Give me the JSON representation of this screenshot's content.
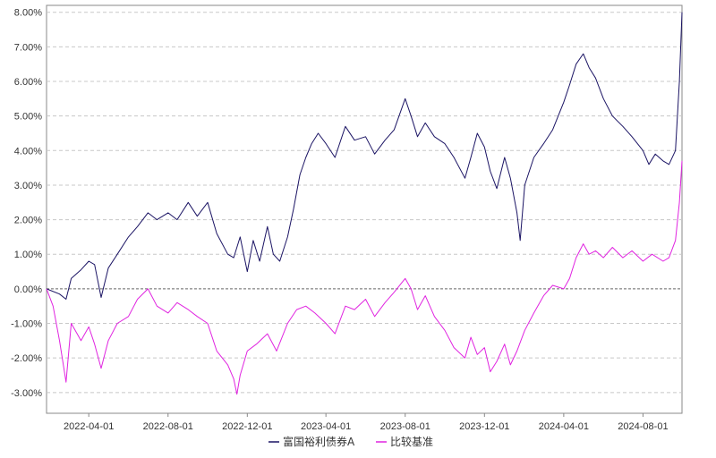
{
  "chart_data": {
    "type": "line",
    "title": "",
    "xlabel": "",
    "ylabel": "",
    "x_range": [
      "2022-01-26",
      "2024-09-30"
    ],
    "ylim": [
      -3.6,
      8.2
    ],
    "y_ticks": [
      -3.0,
      -2.0,
      -1.0,
      0.0,
      1.0,
      2.0,
      3.0,
      4.0,
      5.0,
      6.0,
      7.0,
      8.0
    ],
    "y_tick_labels": [
      "-3.00%",
      "-2.00%",
      "-1.00%",
      "0.00%",
      "1.00%",
      "2.00%",
      "3.00%",
      "4.00%",
      "5.00%",
      "6.00%",
      "7.00%",
      "8.00%"
    ],
    "x_ticks": [
      "2022-04-01",
      "2022-08-01",
      "2022-12-01",
      "2023-04-01",
      "2023-08-01",
      "2023-12-01",
      "2024-04-01",
      "2024-08-01"
    ],
    "grid": "horizontal-dashed",
    "legend_position": "bottom-center",
    "series": [
      {
        "name": "富国裕利债券A",
        "color": "#1b1464",
        "points": [
          [
            "2022-01-26",
            0.0
          ],
          [
            "2022-02-15",
            -0.15
          ],
          [
            "2022-02-25",
            -0.3
          ],
          [
            "2022-03-05",
            0.3
          ],
          [
            "2022-03-20",
            0.55
          ],
          [
            "2022-04-01",
            0.8
          ],
          [
            "2022-04-10",
            0.7
          ],
          [
            "2022-04-20",
            -0.25
          ],
          [
            "2022-05-01",
            0.6
          ],
          [
            "2022-05-15",
            1.0
          ],
          [
            "2022-06-01",
            1.5
          ],
          [
            "2022-06-15",
            1.8
          ],
          [
            "2022-07-01",
            2.2
          ],
          [
            "2022-07-15",
            2.0
          ],
          [
            "2022-08-01",
            2.2
          ],
          [
            "2022-08-15",
            2.0
          ],
          [
            "2022-09-01",
            2.5
          ],
          [
            "2022-09-15",
            2.1
          ],
          [
            "2022-10-01",
            2.5
          ],
          [
            "2022-10-15",
            1.6
          ],
          [
            "2022-11-01",
            1.0
          ],
          [
            "2022-11-10",
            0.9
          ],
          [
            "2022-11-20",
            1.5
          ],
          [
            "2022-12-01",
            0.5
          ],
          [
            "2022-12-10",
            1.4
          ],
          [
            "2022-12-20",
            0.8
          ],
          [
            "2023-01-01",
            1.8
          ],
          [
            "2023-01-10",
            1.0
          ],
          [
            "2023-01-20",
            0.8
          ],
          [
            "2023-02-01",
            1.5
          ],
          [
            "2023-02-10",
            2.3
          ],
          [
            "2023-02-20",
            3.3
          ],
          [
            "2023-03-01",
            3.8
          ],
          [
            "2023-03-10",
            4.2
          ],
          [
            "2023-03-20",
            4.5
          ],
          [
            "2023-04-01",
            4.2
          ],
          [
            "2023-04-15",
            3.8
          ],
          [
            "2023-05-01",
            4.7
          ],
          [
            "2023-05-15",
            4.3
          ],
          [
            "2023-06-01",
            4.4
          ],
          [
            "2023-06-15",
            3.9
          ],
          [
            "2023-07-01",
            4.3
          ],
          [
            "2023-07-15",
            4.6
          ],
          [
            "2023-08-01",
            5.5
          ],
          [
            "2023-08-10",
            5.0
          ],
          [
            "2023-08-20",
            4.4
          ],
          [
            "2023-09-01",
            4.8
          ],
          [
            "2023-09-15",
            4.4
          ],
          [
            "2023-10-01",
            4.2
          ],
          [
            "2023-10-15",
            3.8
          ],
          [
            "2023-11-01",
            3.2
          ],
          [
            "2023-11-10",
            3.8
          ],
          [
            "2023-11-20",
            4.5
          ],
          [
            "2023-12-01",
            4.1
          ],
          [
            "2023-12-10",
            3.4
          ],
          [
            "2023-12-20",
            2.9
          ],
          [
            "2024-01-01",
            3.8
          ],
          [
            "2024-01-10",
            3.2
          ],
          [
            "2024-01-20",
            2.2
          ],
          [
            "2024-01-25",
            1.4
          ],
          [
            "2024-02-01",
            3.0
          ],
          [
            "2024-02-15",
            3.8
          ],
          [
            "2024-03-01",
            4.2
          ],
          [
            "2024-03-15",
            4.6
          ],
          [
            "2024-04-01",
            5.4
          ],
          [
            "2024-04-10",
            5.9
          ],
          [
            "2024-04-20",
            6.5
          ],
          [
            "2024-05-01",
            6.8
          ],
          [
            "2024-05-10",
            6.4
          ],
          [
            "2024-05-20",
            6.1
          ],
          [
            "2024-06-01",
            5.5
          ],
          [
            "2024-06-15",
            5.0
          ],
          [
            "2024-07-01",
            4.7
          ],
          [
            "2024-07-15",
            4.4
          ],
          [
            "2024-08-01",
            4.0
          ],
          [
            "2024-08-10",
            3.6
          ],
          [
            "2024-08-20",
            3.9
          ],
          [
            "2024-09-01",
            3.7
          ],
          [
            "2024-09-10",
            3.6
          ],
          [
            "2024-09-20",
            4.0
          ],
          [
            "2024-09-26",
            6.0
          ],
          [
            "2024-09-30",
            8.0
          ]
        ]
      },
      {
        "name": "比较基准",
        "color": "#e024e0",
        "points": [
          [
            "2022-01-26",
            0.0
          ],
          [
            "2022-02-05",
            -0.5
          ],
          [
            "2022-02-15",
            -1.5
          ],
          [
            "2022-02-25",
            -2.7
          ],
          [
            "2022-03-05",
            -1.0
          ],
          [
            "2022-03-20",
            -1.5
          ],
          [
            "2022-04-01",
            -1.1
          ],
          [
            "2022-04-10",
            -1.6
          ],
          [
            "2022-04-20",
            -2.3
          ],
          [
            "2022-05-01",
            -1.5
          ],
          [
            "2022-05-15",
            -1.0
          ],
          [
            "2022-06-01",
            -0.8
          ],
          [
            "2022-06-15",
            -0.3
          ],
          [
            "2022-07-01",
            0.0
          ],
          [
            "2022-07-15",
            -0.5
          ],
          [
            "2022-08-01",
            -0.7
          ],
          [
            "2022-08-15",
            -0.4
          ],
          [
            "2022-09-01",
            -0.6
          ],
          [
            "2022-09-15",
            -0.8
          ],
          [
            "2022-10-01",
            -1.0
          ],
          [
            "2022-10-15",
            -1.8
          ],
          [
            "2022-11-01",
            -2.2
          ],
          [
            "2022-11-10",
            -2.6
          ],
          [
            "2022-11-15",
            -3.05
          ],
          [
            "2022-11-20",
            -2.5
          ],
          [
            "2022-12-01",
            -1.8
          ],
          [
            "2022-12-15",
            -1.6
          ],
          [
            "2023-01-01",
            -1.3
          ],
          [
            "2023-01-15",
            -1.8
          ],
          [
            "2023-02-01",
            -1.0
          ],
          [
            "2023-02-15",
            -0.6
          ],
          [
            "2023-03-01",
            -0.5
          ],
          [
            "2023-03-15",
            -0.7
          ],
          [
            "2023-04-01",
            -1.0
          ],
          [
            "2023-04-15",
            -1.3
          ],
          [
            "2023-05-01",
            -0.5
          ],
          [
            "2023-05-15",
            -0.6
          ],
          [
            "2023-06-01",
            -0.3
          ],
          [
            "2023-06-15",
            -0.8
          ],
          [
            "2023-07-01",
            -0.4
          ],
          [
            "2023-07-15",
            -0.1
          ],
          [
            "2023-08-01",
            0.3
          ],
          [
            "2023-08-10",
            0.0
          ],
          [
            "2023-08-20",
            -0.6
          ],
          [
            "2023-09-01",
            -0.2
          ],
          [
            "2023-09-15",
            -0.8
          ],
          [
            "2023-10-01",
            -1.2
          ],
          [
            "2023-10-15",
            -1.7
          ],
          [
            "2023-11-01",
            -2.0
          ],
          [
            "2023-11-10",
            -1.4
          ],
          [
            "2023-11-20",
            -1.9
          ],
          [
            "2023-12-01",
            -1.7
          ],
          [
            "2023-12-10",
            -2.4
          ],
          [
            "2023-12-20",
            -2.1
          ],
          [
            "2024-01-01",
            -1.6
          ],
          [
            "2024-01-10",
            -2.2
          ],
          [
            "2024-01-20",
            -1.8
          ],
          [
            "2024-02-01",
            -1.2
          ],
          [
            "2024-02-15",
            -0.7
          ],
          [
            "2024-03-01",
            -0.2
          ],
          [
            "2024-03-15",
            0.1
          ],
          [
            "2024-04-01",
            0.0
          ],
          [
            "2024-04-10",
            0.3
          ],
          [
            "2024-04-20",
            0.9
          ],
          [
            "2024-05-01",
            1.3
          ],
          [
            "2024-05-10",
            1.0
          ],
          [
            "2024-05-20",
            1.1
          ],
          [
            "2024-06-01",
            0.9
          ],
          [
            "2024-06-15",
            1.2
          ],
          [
            "2024-07-01",
            0.9
          ],
          [
            "2024-07-15",
            1.1
          ],
          [
            "2024-08-01",
            0.8
          ],
          [
            "2024-08-15",
            1.0
          ],
          [
            "2024-09-01",
            0.8
          ],
          [
            "2024-09-10",
            0.9
          ],
          [
            "2024-09-20",
            1.4
          ],
          [
            "2024-09-26",
            2.5
          ],
          [
            "2024-09-30",
            3.7
          ]
        ]
      }
    ]
  }
}
